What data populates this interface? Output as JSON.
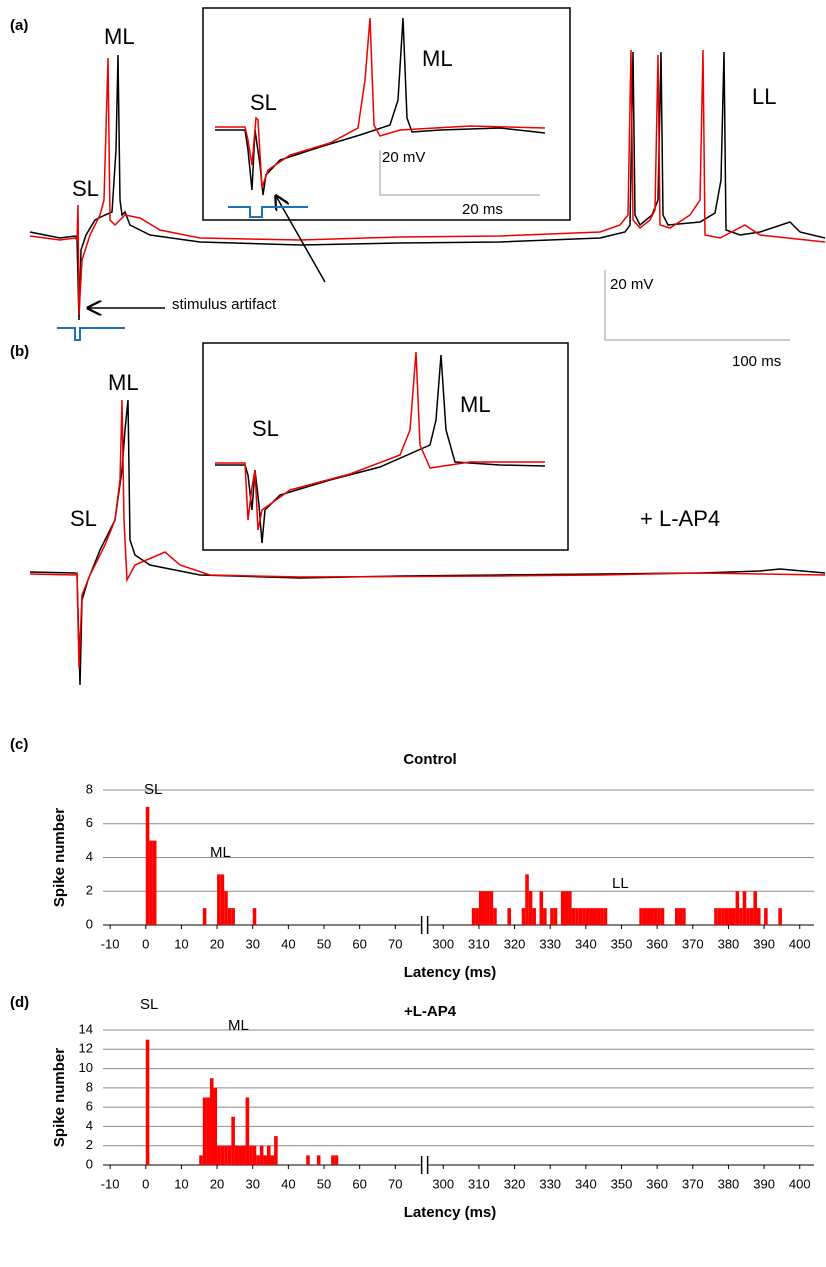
{
  "panel_a": {
    "label": "(a)",
    "ml": "ML",
    "sl": "SL",
    "ll": "LL",
    "artifact": "stimulus artifact",
    "scale_mv": "20 mV",
    "scale_ms": "100 ms",
    "inset": {
      "sl": "SL",
      "ml": "ML",
      "scale_mv": "20 mV",
      "scale_ms": "20 ms"
    }
  },
  "panel_b": {
    "label": "(b)",
    "ml": "ML",
    "sl": "SL",
    "condition": "+ L-AP4",
    "inset": {
      "sl": "SL",
      "ml": "ML"
    }
  },
  "chart_data": [
    {
      "type": "histogram",
      "panel": "(c)",
      "title": "Control",
      "x_label": "Latency (ms)",
      "y_label": "Spike number",
      "color": "#ff0000",
      "annotations": [
        "SL",
        "ML",
        "LL"
      ],
      "x": [
        0,
        1,
        2,
        16,
        20,
        21,
        22,
        23,
        24,
        30,
        308,
        309,
        310,
        311,
        312,
        313,
        314,
        318,
        322,
        323,
        324,
        325,
        327,
        328,
        330,
        331,
        333,
        334,
        335,
        336,
        337,
        338,
        339,
        340,
        341,
        342,
        343,
        344,
        345,
        355,
        356,
        357,
        358,
        359,
        360,
        361,
        365,
        366,
        367,
        376,
        377,
        378,
        379,
        380,
        381,
        382,
        383,
        384,
        385,
        386,
        387,
        388,
        390,
        394
      ],
      "values": [
        7,
        5,
        5,
        1,
        3,
        3,
        2,
        1,
        1,
        1,
        1,
        1,
        2,
        2,
        2,
        2,
        1,
        1,
        1,
        3,
        2,
        1,
        2,
        1,
        1,
        1,
        2,
        2,
        2,
        1,
        1,
        1,
        1,
        1,
        1,
        1,
        1,
        1,
        1,
        1,
        1,
        1,
        1,
        1,
        1,
        1,
        1,
        1,
        1,
        1,
        1,
        1,
        1,
        1,
        1,
        2,
        1,
        2,
        1,
        1,
        2,
        1,
        1,
        1
      ],
      "xlim": [
        -12,
        404
      ],
      "xbreak": [
        75,
        298
      ],
      "xticks": [
        -10,
        0,
        10,
        20,
        30,
        40,
        50,
        60,
        70,
        300,
        310,
        320,
        330,
        340,
        350,
        360,
        370,
        380,
        390,
        400
      ],
      "ylim": [
        0,
        8
      ],
      "yticks": [
        0,
        2,
        4,
        6,
        8
      ],
      "grid": true
    },
    {
      "type": "histogram",
      "panel": "(d)",
      "title": "+L-AP4",
      "x_label": "Latency (ms)",
      "y_label": "Spike number",
      "color": "#ff0000",
      "annotations": [
        "SL",
        "ML"
      ],
      "x": [
        0,
        15,
        16,
        17,
        18,
        19,
        20,
        21,
        22,
        23,
        24,
        25,
        26,
        27,
        28,
        29,
        30,
        31,
        32,
        33,
        34,
        35,
        36,
        45,
        48,
        52,
        53
      ],
      "values": [
        13,
        1,
        7,
        7,
        9,
        8,
        2,
        2,
        2,
        2,
        5,
        2,
        2,
        2,
        7,
        2,
        2,
        1,
        2,
        1,
        2,
        1,
        3,
        1,
        1,
        1,
        1
      ],
      "xlim": [
        -12,
        404
      ],
      "xbreak": [
        75,
        298
      ],
      "xticks": [
        -10,
        0,
        10,
        20,
        30,
        40,
        50,
        60,
        70,
        300,
        310,
        320,
        330,
        340,
        350,
        360,
        370,
        380,
        390,
        400
      ],
      "ylim": [
        0,
        14
      ],
      "yticks": [
        0,
        2,
        4,
        6,
        8,
        10,
        12,
        14
      ],
      "grid": true
    }
  ]
}
